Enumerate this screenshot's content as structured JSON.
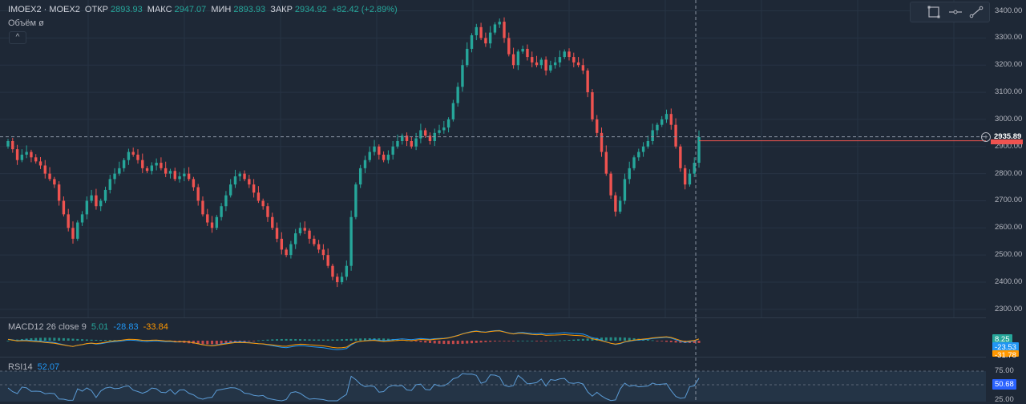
{
  "header": {
    "symbol": "IMOEX2 · MOEX2",
    "open_label": "ОТКР",
    "open_value": "2893.93",
    "high_label": "МАКС",
    "high_value": "2947.07",
    "low_label": "МИН",
    "low_value": "2893.93",
    "close_label": "ЗАКР",
    "close_value": "2934.92",
    "change": "+82.42 (+2.89%)",
    "volume_label": "Объём ø",
    "collapse_glyph": "^"
  },
  "toolbar": {
    "icons": [
      "rectangle-icon",
      "horizontal-ray-icon",
      "trend-line-icon"
    ]
  },
  "colors": {
    "background": "#1e2836",
    "up": "#26a69a",
    "down": "#ef5350",
    "macd_line": "#2196f3",
    "signal_line": "#ff9800",
    "rsi_line": "#5b9bd5"
  },
  "price_axis": {
    "ticks": [
      "3400.00",
      "3300.00",
      "3200.00",
      "3100.00",
      "3000.00",
      "2900.00",
      "2800.00",
      "2700.00",
      "2600.00",
      "2500.00",
      "2400.00",
      "2300.00"
    ],
    "current_price": "2935.89"
  },
  "macd": {
    "label": "MACD12 26 close 9",
    "histogram": "5.01",
    "macd_value": "-28.83",
    "signal_value": "-33.84",
    "axis_badges": [
      "8.25",
      "-23.53",
      "-31.78"
    ]
  },
  "rsi": {
    "label": "RSI14",
    "value": "52.07",
    "axis_ticks": [
      "75.00",
      "25.00"
    ],
    "axis_badge": "50.68"
  },
  "chart_data": {
    "type": "candlestick",
    "ylim": [
      2270,
      3440
    ],
    "closes": [
      2920,
      2890,
      2850,
      2870,
      2880,
      2860,
      2845,
      2830,
      2800,
      2780,
      2760,
      2700,
      2650,
      2600,
      2560,
      2620,
      2650,
      2700,
      2720,
      2680,
      2700,
      2740,
      2780,
      2800,
      2820,
      2850,
      2880,
      2870,
      2850,
      2820,
      2810,
      2830,
      2840,
      2820,
      2800,
      2810,
      2780,
      2790,
      2800,
      2780,
      2750,
      2700,
      2650,
      2620,
      2600,
      2640,
      2680,
      2720,
      2760,
      2790,
      2800,
      2780,
      2760,
      2730,
      2700,
      2680,
      2640,
      2600,
      2560,
      2520,
      2500,
      2540,
      2580,
      2600,
      2590,
      2560,
      2540,
      2520,
      2500,
      2460,
      2420,
      2400,
      2420,
      2460,
      2640,
      2760,
      2820,
      2850,
      2880,
      2900,
      2870,
      2850,
      2870,
      2900,
      2920,
      2940,
      2920,
      2900,
      2930,
      2960,
      2940,
      2920,
      2950,
      2960,
      2970,
      3000,
      3060,
      3120,
      3200,
      3260,
      3310,
      3340,
      3300,
      3280,
      3320,
      3350,
      3360,
      3300,
      3240,
      3200,
      3250,
      3260,
      3230,
      3210,
      3200,
      3220,
      3180,
      3200,
      3210,
      3230,
      3250,
      3230,
      3210,
      3200,
      3180,
      3100,
      3000,
      2950,
      2880,
      2800,
      2720,
      2660,
      2700,
      2780,
      2820,
      2860,
      2880,
      2900,
      2920,
      2960,
      2980,
      3000,
      3020,
      2980,
      2900,
      2820,
      2760,
      2800,
      2840,
      2935
    ]
  }
}
